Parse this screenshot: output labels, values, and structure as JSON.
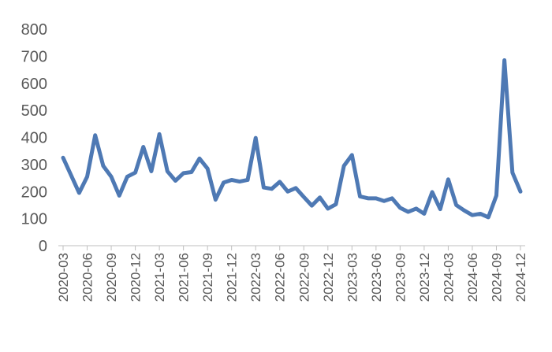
{
  "chart_data": {
    "type": "line",
    "title": "",
    "xlabel": "",
    "ylabel": "",
    "ylim": [
      0,
      800
    ],
    "yticks": [
      0,
      100,
      200,
      300,
      400,
      500,
      600,
      700,
      800
    ],
    "grid": false,
    "legend": "none",
    "x_tick_labels": [
      "2020-03",
      "2020-06",
      "2020-09",
      "2020-12",
      "2021-03",
      "2021-06",
      "2021-09",
      "2021-12",
      "2022-03",
      "2022-06",
      "2022-09",
      "2022-12",
      "2023-03",
      "2023-06",
      "2023-09",
      "2023-12",
      "2024-03",
      "2024-06",
      "2024-09",
      "2024-12"
    ],
    "x": [
      "2020-03",
      "2020-04",
      "2020-05",
      "2020-06",
      "2020-07",
      "2020-08",
      "2020-09",
      "2020-10",
      "2020-11",
      "2020-12",
      "2021-01",
      "2021-02",
      "2021-03",
      "2021-04",
      "2021-05",
      "2021-06",
      "2021-07",
      "2021-08",
      "2021-09",
      "2021-10",
      "2021-11",
      "2021-12",
      "2022-01",
      "2022-02",
      "2022-03",
      "2022-04",
      "2022-05",
      "2022-06",
      "2022-07",
      "2022-08",
      "2022-09",
      "2022-10",
      "2022-11",
      "2022-12",
      "2023-01",
      "2023-02",
      "2023-03",
      "2023-04",
      "2023-05",
      "2023-06",
      "2023-07",
      "2023-08",
      "2023-09",
      "2023-10",
      "2023-11",
      "2023-12",
      "2024-01",
      "2024-02",
      "2024-03",
      "2024-04",
      "2024-05",
      "2024-06",
      "2024-07",
      "2024-08",
      "2024-09",
      "2024-10",
      "2024-11",
      "2024-12"
    ],
    "series": [
      {
        "color": "#4e79b4",
        "values": [
          325,
          260,
          195,
          255,
          408,
          295,
          255,
          185,
          255,
          270,
          365,
          275,
          412,
          275,
          240,
          268,
          272,
          322,
          285,
          170,
          233,
          243,
          237,
          243,
          398,
          215,
          210,
          236,
          200,
          213,
          180,
          148,
          178,
          137,
          153,
          295,
          335,
          182,
          175,
          175,
          165,
          175,
          140,
          125,
          137,
          118,
          198,
          135,
          245,
          150,
          130,
          113,
          118,
          105,
          185,
          685,
          270,
          200
        ]
      }
    ]
  }
}
